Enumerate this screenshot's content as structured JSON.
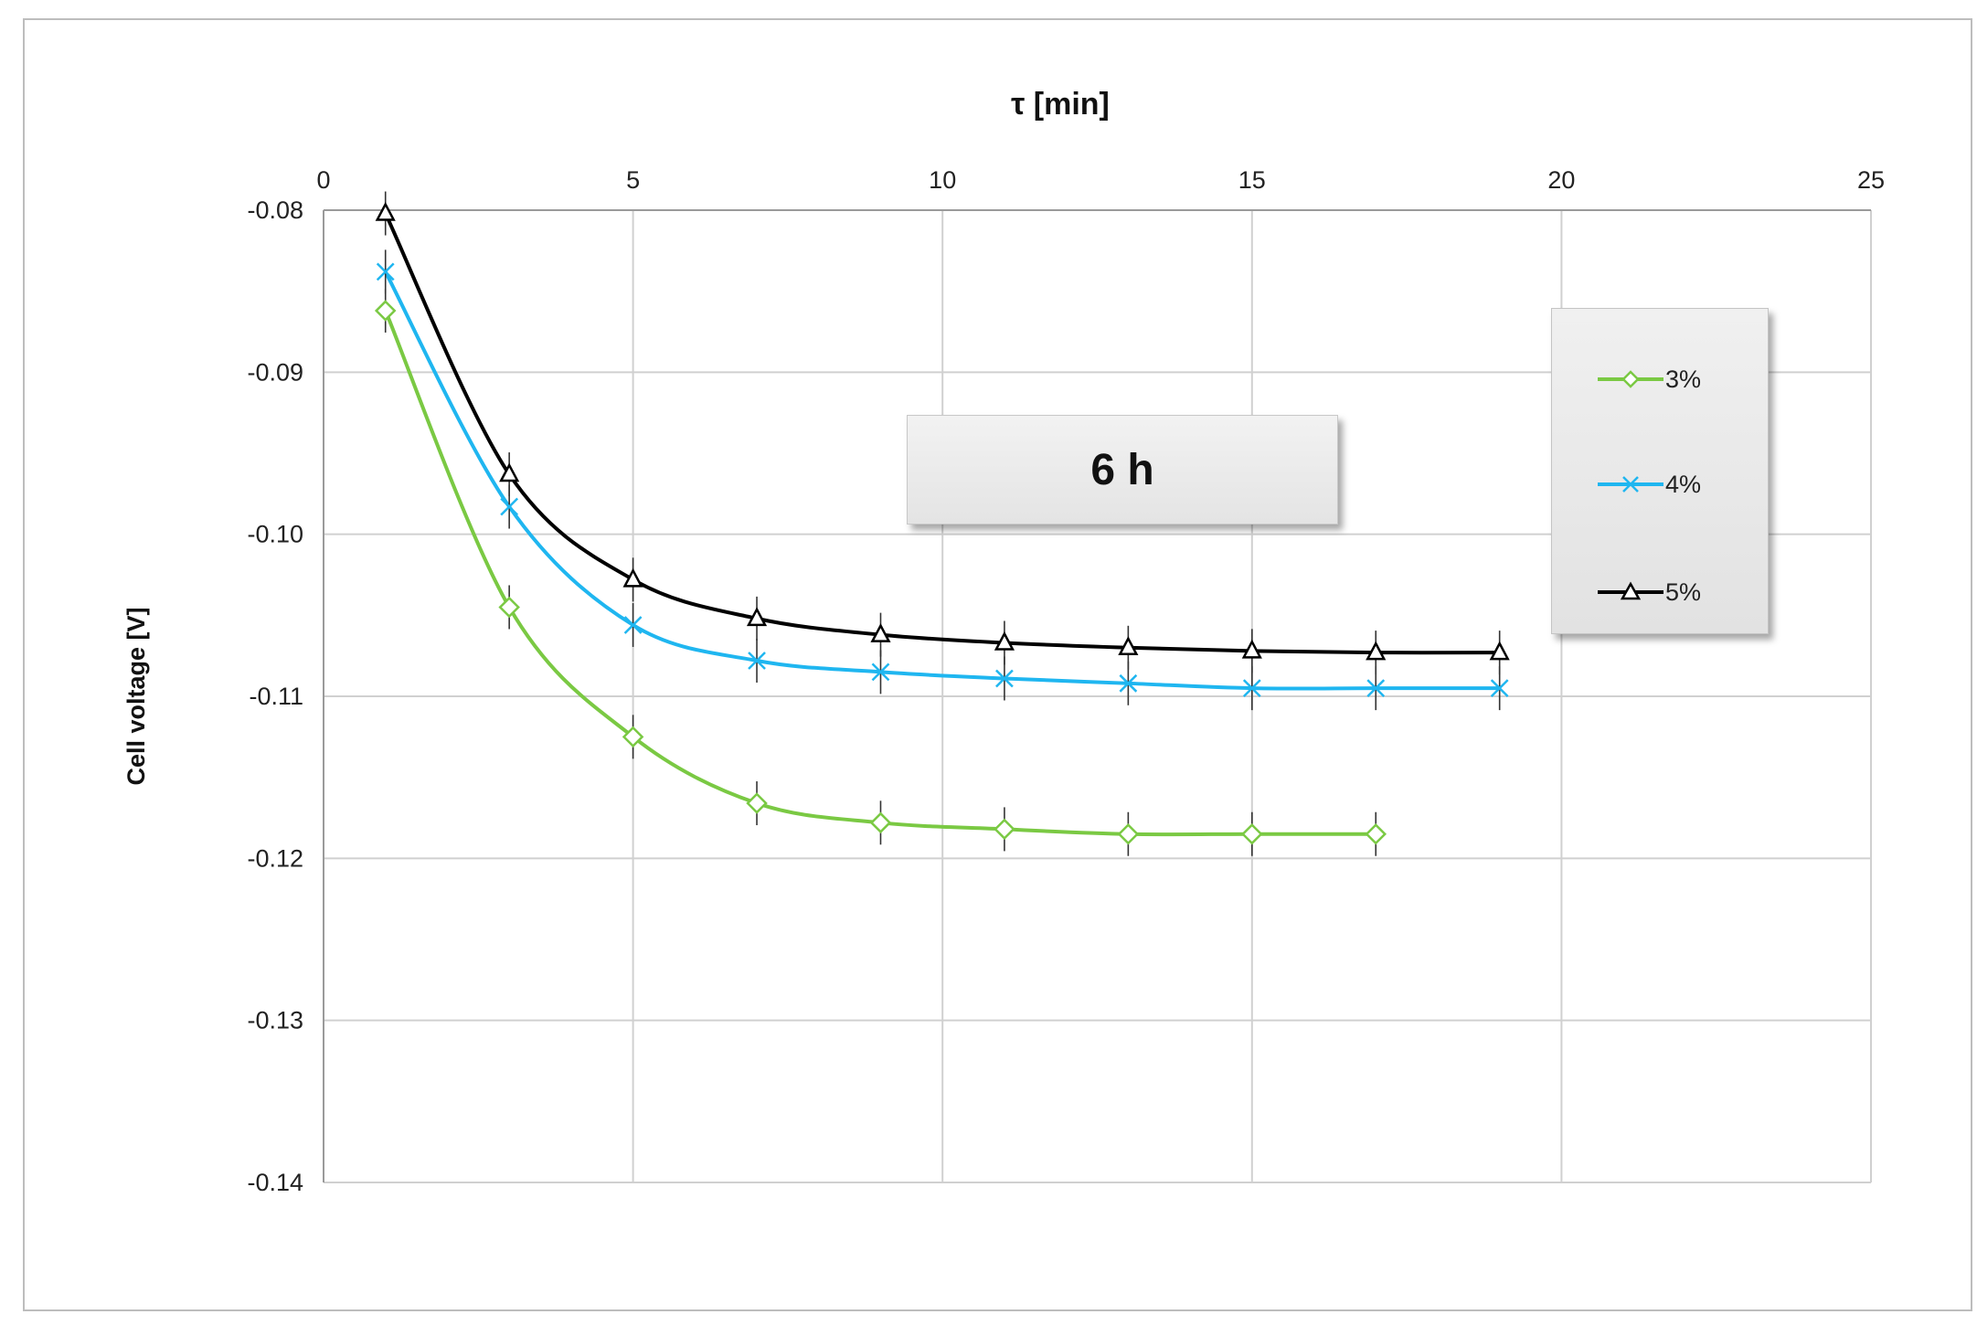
{
  "chart_data": {
    "type": "line",
    "xlabel": "τ [min]",
    "ylabel": "Cell voltage [V]",
    "xlim": [
      0,
      25
    ],
    "ylim": [
      -0.14,
      -0.08
    ],
    "x_ticks": [
      "0",
      "5",
      "10",
      "15",
      "20",
      "25"
    ],
    "y_ticks": [
      "-0.08",
      "-0.09",
      "-0.10",
      "-0.11",
      "-0.12",
      "-0.13",
      "-0.14"
    ],
    "x_axis_position": "top",
    "grid": true,
    "legend_position": "right",
    "annotation": "6 h",
    "series": [
      {
        "name": "3%",
        "color": "#7ac943",
        "marker": "diamond",
        "x": [
          1,
          3,
          5,
          7,
          9,
          11,
          13,
          15,
          17
        ],
        "y": [
          -0.0862,
          -0.1045,
          -0.1125,
          -0.1166,
          -0.1178,
          -0.1182,
          -0.1185,
          -0.1185,
          -0.1185
        ]
      },
      {
        "name": "4%",
        "color": "#1fb6f0",
        "marker": "x",
        "x": [
          1,
          3,
          5,
          7,
          9,
          11,
          13,
          15,
          17,
          19
        ],
        "y": [
          -0.0838,
          -0.0983,
          -0.1056,
          -0.1078,
          -0.1085,
          -0.1089,
          -0.1092,
          -0.1095,
          -0.1095,
          -0.1095
        ]
      },
      {
        "name": "5%",
        "color": "#000000",
        "marker": "triangle",
        "x": [
          1,
          3,
          5,
          7,
          9,
          11,
          13,
          15,
          17,
          19
        ],
        "y": [
          -0.0802,
          -0.0963,
          -0.1028,
          -0.1052,
          -0.1062,
          -0.1067,
          -0.107,
          -0.1072,
          -0.1073,
          -0.1073
        ]
      }
    ]
  }
}
